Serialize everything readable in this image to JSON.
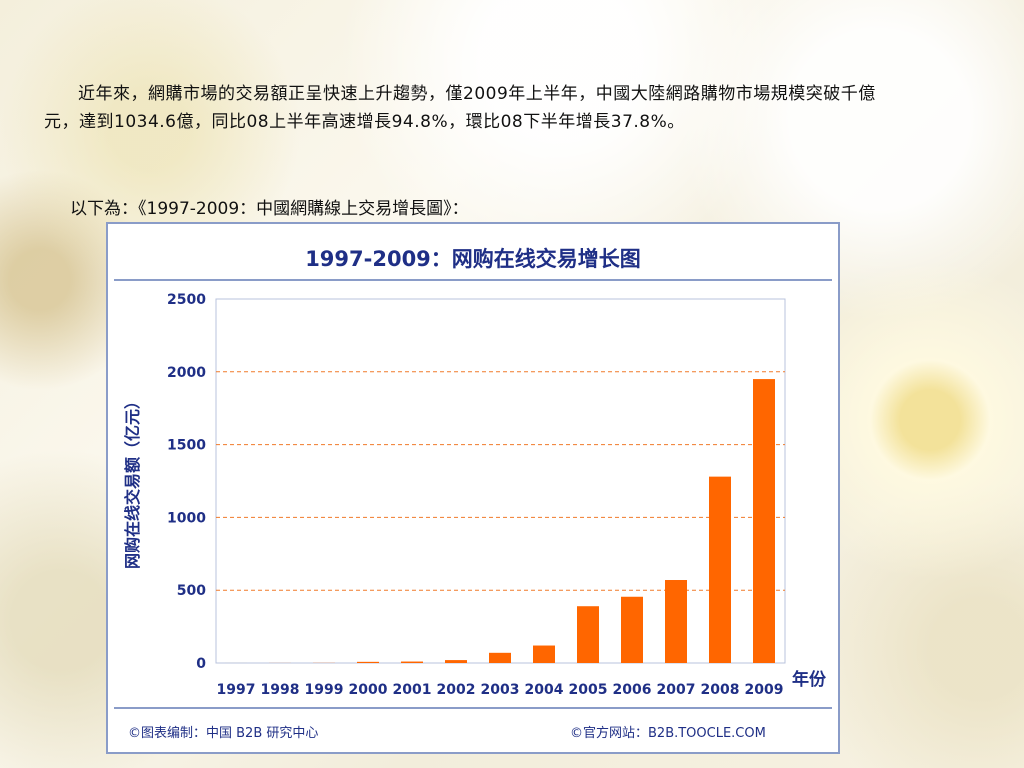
{
  "paragraph": "近年來，網購市場的交易額正呈快速上升趨勢，僅2009年上半年，中國大陸網路購物市場規模突破千億元，達到1034.6億，同比08上半年高速增長94.8%，環比08下半年增長37.8%。",
  "intro": "以下為：《1997-2009：中國網購線上交易增長圖》：",
  "chart_data": {
    "type": "bar",
    "title": "1997-2009：网购在线交易增长图",
    "ylabel": "网购在线交易额（亿元）",
    "xlabel": "年份",
    "categories": [
      "1997",
      "1998",
      "1999",
      "2000",
      "2001",
      "2002",
      "2003",
      "2004",
      "2005",
      "2006",
      "2007",
      "2008",
      "2009"
    ],
    "values": [
      0.1,
      0.5,
      1,
      8,
      10,
      20,
      70,
      120,
      390,
      455,
      570,
      1280,
      1950
    ],
    "ylim": [
      0,
      2500
    ],
    "yticks": [
      0,
      500,
      1000,
      1500,
      2000,
      2500
    ],
    "grid": true,
    "bar_color": "#ff6600",
    "title_color": "#1f2f86",
    "footer_left": "©图表编制：中国 B2B 研究中心",
    "footer_right": "©官方网站：B2B.TOOCLE.COM"
  }
}
